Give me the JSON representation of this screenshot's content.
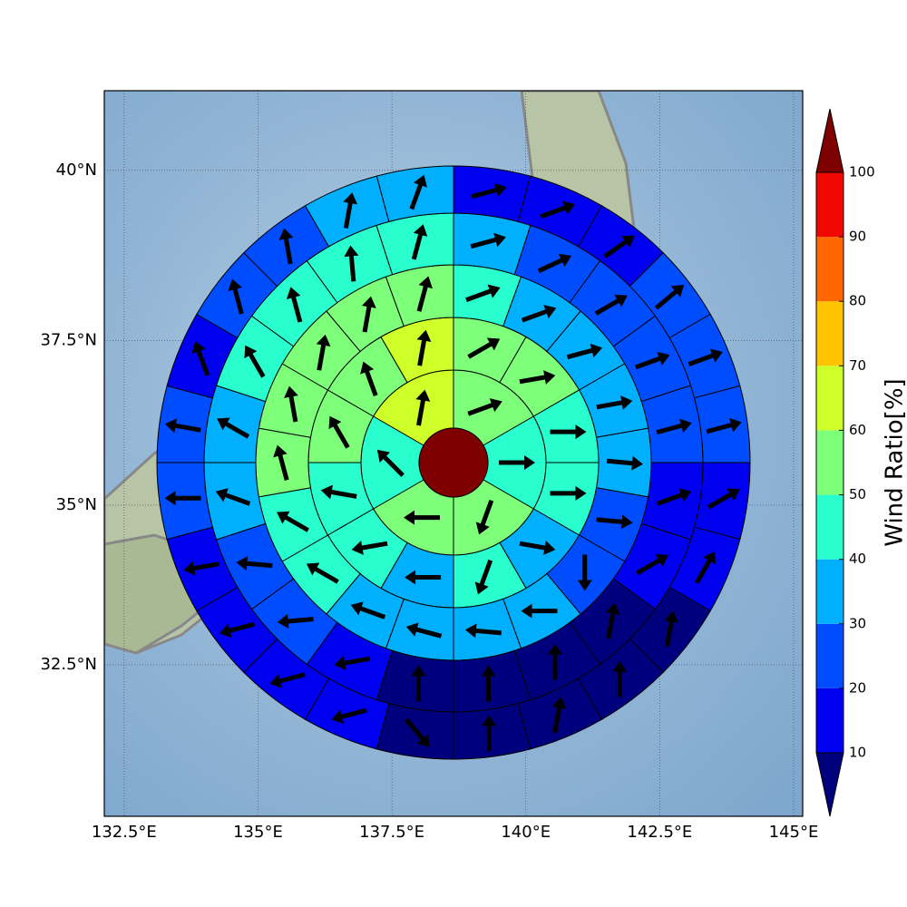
{
  "chart_data": {
    "type": "polar_sectors",
    "xlim": [
      132.13,
      145.17
    ],
    "ylim": [
      30.06,
      41.14
    ],
    "projection": "mercator",
    "grid": true,
    "xticks": [
      {
        "value": 132.5,
        "label": "132.5°E"
      },
      {
        "value": 135,
        "label": "135°E"
      },
      {
        "value": 137.5,
        "label": "137.5°E"
      },
      {
        "value": 140,
        "label": "140°E"
      },
      {
        "value": 142.5,
        "label": "142.5°E"
      },
      {
        "value": 145,
        "label": "145°E"
      }
    ],
    "yticks": [
      {
        "value": 32.5,
        "label": "32.5°N"
      },
      {
        "value": 35,
        "label": "35°N"
      },
      {
        "value": 37.5,
        "label": "37.5°N"
      },
      {
        "value": 40,
        "label": "40°N"
      }
    ],
    "colorbar": {
      "label": "Wind Ratio[%]",
      "ticks": [
        10,
        20,
        30,
        40,
        50,
        60,
        70,
        80,
        90,
        100
      ],
      "colors": [
        "#00007f",
        "#0000f1",
        "#004cff",
        "#00b0ff",
        "#29ffce",
        "#7dff7a",
        "#ceff29",
        "#ffc400",
        "#ff6800",
        "#f10800",
        "#7f0000"
      ]
    },
    "center": {
      "value": 105
    },
    "rings": [
      {
        "values": [
          55,
          45,
          55,
          55,
          45,
          65
        ],
        "directions": [
          70,
          90,
          200,
          270,
          315,
          10
        ]
      },
      {
        "values": [
          55,
          55,
          45,
          45,
          35,
          45,
          35,
          45,
          45,
          55,
          55,
          65
        ],
        "directions": [
          60,
          80,
          90,
          90,
          100,
          200,
          270,
          260,
          280,
          330,
          340,
          10
        ]
      },
      {
        "values": [
          45,
          35,
          35,
          35,
          35,
          25,
          25,
          35,
          35,
          35,
          35,
          45,
          45,
          55,
          55,
          55,
          55,
          55
        ],
        "directions": [
          70,
          70,
          75,
          80,
          95,
          95,
          180,
          270,
          275,
          285,
          290,
          300,
          300,
          345,
          350,
          10,
          10,
          15
        ]
      },
      {
        "values": [
          35,
          25,
          25,
          25,
          25,
          15,
          15,
          5,
          5,
          5,
          5,
          15,
          25,
          25,
          35,
          35,
          45,
          45,
          45,
          45
        ],
        "directions": [
          75,
          65,
          60,
          70,
          75,
          70,
          60,
          10,
          0,
          0,
          0,
          260,
          265,
          275,
          290,
          300,
          330,
          345,
          355,
          15
        ]
      },
      {
        "values": [
          15,
          15,
          15,
          25,
          25,
          25,
          15,
          15,
          5,
          5,
          5,
          5,
          5,
          15,
          15,
          15,
          15,
          25,
          25,
          15,
          25,
          25,
          35,
          35
        ],
        "directions": [
          75,
          70,
          55,
          50,
          70,
          75,
          60,
          30,
          10,
          0,
          10,
          0,
          140,
          255,
          255,
          255,
          260,
          270,
          280,
          340,
          345,
          350,
          10,
          20
        ]
      }
    ]
  }
}
